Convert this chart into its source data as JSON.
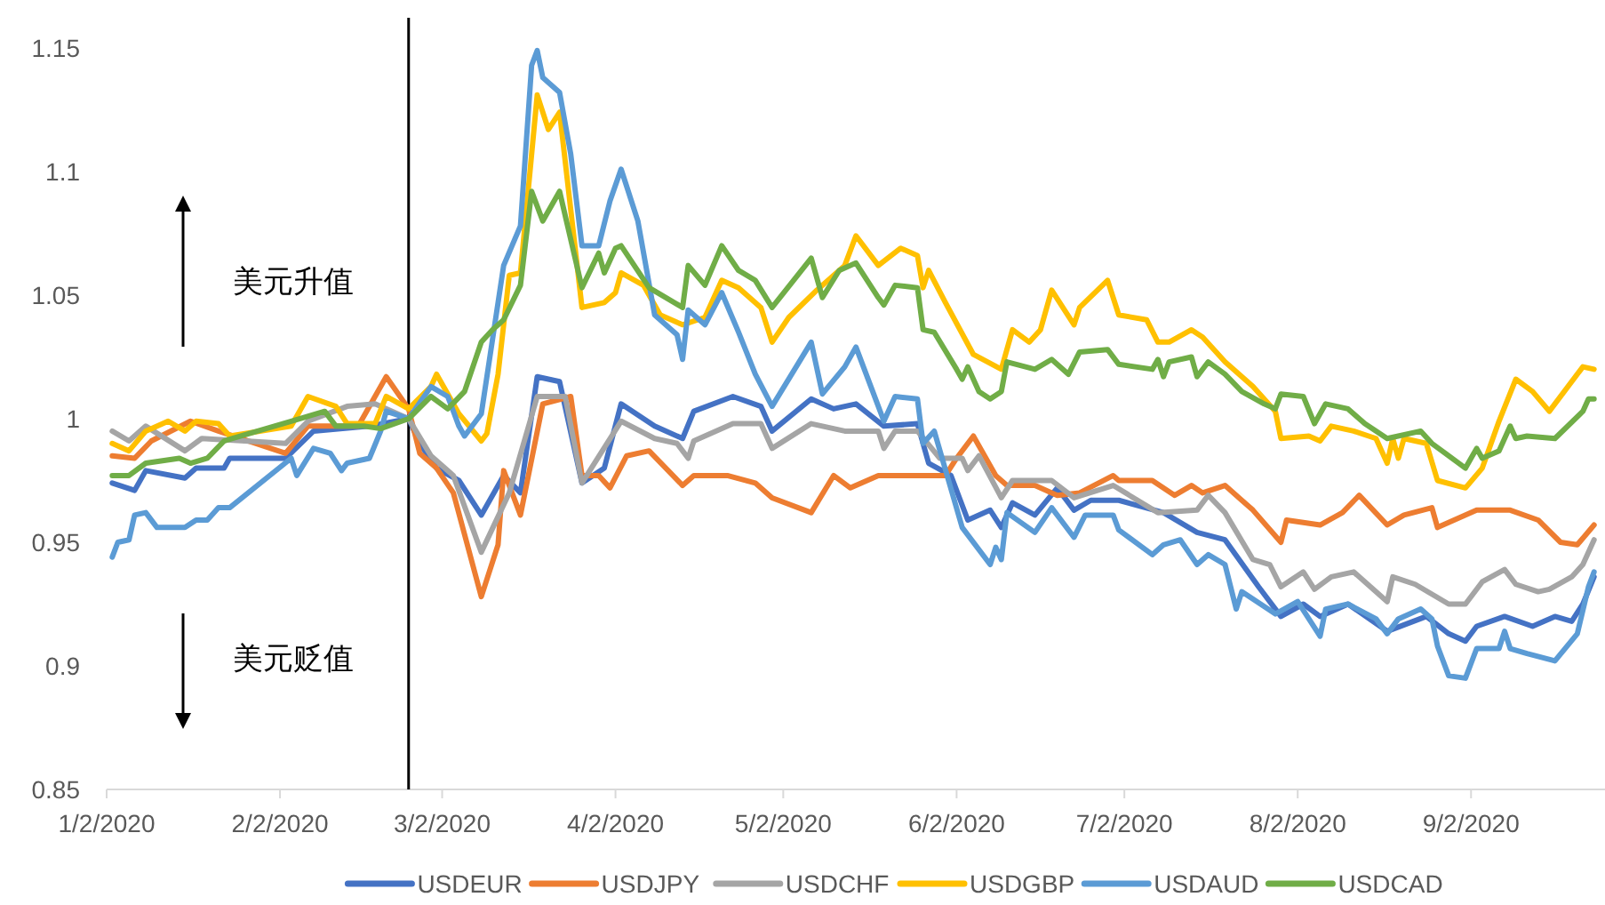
{
  "chart_data": {
    "type": "line",
    "xlim": [
      "2020-01-02",
      "2020-09-25"
    ],
    "ylim": [
      0.85,
      1.15
    ],
    "xticks": [
      {
        "value": "2020-01-02",
        "label": "1/2/2020"
      },
      {
        "value": "2020-02-02",
        "label": "2/2/2020"
      },
      {
        "value": "2020-03-02",
        "label": "3/2/2020"
      },
      {
        "value": "2020-04-02",
        "label": "4/2/2020"
      },
      {
        "value": "2020-05-02",
        "label": "5/2/2020"
      },
      {
        "value": "2020-06-02",
        "label": "6/2/2020"
      },
      {
        "value": "2020-07-02",
        "label": "7/2/2020"
      },
      {
        "value": "2020-08-02",
        "label": "8/2/2020"
      },
      {
        "value": "2020-09-02",
        "label": "9/2/2020"
      }
    ],
    "yticks": [
      0.85,
      0.9,
      0.95,
      1,
      1.05,
      1.1,
      1.15
    ],
    "legend": "bottom",
    "marker": "none",
    "line_style": "solid",
    "ref_lines": [
      {
        "axis": "x",
        "value": "2020-02-25",
        "color": "#000000"
      }
    ],
    "annotations": [
      "美元升值",
      "美元贬值"
    ],
    "series": [
      {
        "name": "USDEUR",
        "color": "#4472c4",
        "x": [
          "2020-01-03",
          "2020-01-07",
          "2020-01-09",
          "2020-01-16",
          "2020-01-18",
          "2020-01-23",
          "2020-01-24",
          "2020-02-03",
          "2020-02-08",
          "2020-02-18",
          "2020-02-25",
          "2020-02-27",
          "2020-03-01",
          "2020-03-05",
          "2020-03-09",
          "2020-03-13",
          "2020-03-16",
          "2020-03-19",
          "2020-03-23",
          "2020-03-27",
          "2020-03-31",
          "2020-04-03",
          "2020-04-09",
          "2020-04-14",
          "2020-04-16",
          "2020-04-23",
          "2020-04-28",
          "2020-04-30",
          "2020-05-07",
          "2020-05-11",
          "2020-05-15",
          "2020-05-20",
          "2020-05-26",
          "2020-05-28",
          "2020-06-01",
          "2020-06-04",
          "2020-06-08",
          "2020-06-10",
          "2020-06-12",
          "2020-06-16",
          "2020-06-20",
          "2020-06-23",
          "2020-06-26",
          "2020-07-01",
          "2020-07-09",
          "2020-07-15",
          "2020-07-20",
          "2020-07-26",
          "2020-07-30",
          "2020-08-03",
          "2020-08-06",
          "2020-08-11",
          "2020-08-18",
          "2020-08-25",
          "2020-08-29",
          "2020-09-01",
          "2020-09-03",
          "2020-09-08",
          "2020-09-13",
          "2020-09-17",
          "2020-09-20",
          "2020-09-22",
          "2020-09-24"
        ],
        "values": [
          0.974,
          0.971,
          0.979,
          0.976,
          0.98,
          0.98,
          0.984,
          0.984,
          0.995,
          0.997,
          1.0,
          0.99,
          0.98,
          0.975,
          0.961,
          0.977,
          0.97,
          1.017,
          1.015,
          0.974,
          0.98,
          1.006,
          0.997,
          0.992,
          1.003,
          1.009,
          1.005,
          0.995,
          1.008,
          1.004,
          1.006,
          0.997,
          0.998,
          0.982,
          0.977,
          0.959,
          0.963,
          0.956,
          0.966,
          0.961,
          0.972,
          0.963,
          0.967,
          0.967,
          0.962,
          0.954,
          0.951,
          0.932,
          0.92,
          0.925,
          0.92,
          0.925,
          0.914,
          0.92,
          0.913,
          0.91,
          0.916,
          0.92,
          0.916,
          0.92,
          0.918,
          0.925,
          0.936
        ]
      },
      {
        "name": "USDJPY",
        "color": "#ed7d31",
        "x": [
          "2020-01-03",
          "2020-01-07",
          "2020-01-10",
          "2020-01-17",
          "2020-01-22",
          "2020-02-03",
          "2020-02-07",
          "2020-02-16",
          "2020-02-21",
          "2020-02-25",
          "2020-02-27",
          "2020-03-01",
          "2020-03-04",
          "2020-03-09",
          "2020-03-12",
          "2020-03-13",
          "2020-03-16",
          "2020-03-20",
          "2020-03-25",
          "2020-03-27",
          "2020-03-30",
          "2020-04-01",
          "2020-04-04",
          "2020-04-08",
          "2020-04-14",
          "2020-04-16",
          "2020-04-22",
          "2020-04-27",
          "2020-04-30",
          "2020-05-07",
          "2020-05-11",
          "2020-05-14",
          "2020-05-19",
          "2020-05-27",
          "2020-05-31",
          "2020-06-02",
          "2020-06-05",
          "2020-06-09",
          "2020-06-11",
          "2020-06-16",
          "2020-06-20",
          "2020-06-24",
          "2020-06-30",
          "2020-07-01",
          "2020-07-07",
          "2020-07-11",
          "2020-07-14",
          "2020-07-16",
          "2020-07-20",
          "2020-07-23",
          "2020-07-25",
          "2020-07-30",
          "2020-07-31",
          "2020-08-06",
          "2020-08-10",
          "2020-08-13",
          "2020-08-18",
          "2020-08-21",
          "2020-08-26",
          "2020-08-27",
          "2020-09-03",
          "2020-09-09",
          "2020-09-14",
          "2020-09-18",
          "2020-09-21",
          "2020-09-24"
        ],
        "values": [
          0.985,
          0.984,
          0.991,
          0.999,
          0.995,
          0.986,
          0.997,
          0.997,
          1.017,
          1.004,
          0.986,
          0.98,
          0.97,
          0.928,
          0.949,
          0.979,
          0.961,
          1.006,
          1.009,
          0.977,
          0.977,
          0.972,
          0.985,
          0.987,
          0.973,
          0.977,
          0.977,
          0.974,
          0.968,
          0.962,
          0.977,
          0.972,
          0.977,
          0.977,
          0.977,
          0.984,
          0.993,
          0.977,
          0.973,
          0.973,
          0.969,
          0.97,
          0.977,
          0.975,
          0.975,
          0.969,
          0.973,
          0.97,
          0.973,
          0.967,
          0.963,
          0.95,
          0.959,
          0.957,
          0.962,
          0.969,
          0.957,
          0.961,
          0.964,
          0.956,
          0.963,
          0.963,
          0.959,
          0.95,
          0.949,
          0.957
        ]
      },
      {
        "name": "USDCHF",
        "color": "#a5a5a5",
        "x": [
          "2020-01-03",
          "2020-01-06",
          "2020-01-09",
          "2020-01-16",
          "2020-01-19",
          "2020-02-03",
          "2020-02-07",
          "2020-02-14",
          "2020-02-19",
          "2020-02-25",
          "2020-02-29",
          "2020-03-04",
          "2020-03-09",
          "2020-03-14",
          "2020-03-19",
          "2020-03-24",
          "2020-03-27",
          "2020-04-03",
          "2020-04-09",
          "2020-04-13",
          "2020-04-15",
          "2020-04-16",
          "2020-04-23",
          "2020-04-28",
          "2020-04-30",
          "2020-05-07",
          "2020-05-13",
          "2020-05-19",
          "2020-05-20",
          "2020-05-22",
          "2020-05-26",
          "2020-05-30",
          "2020-06-03",
          "2020-06-04",
          "2020-06-06",
          "2020-06-10",
          "2020-06-12",
          "2020-06-19",
          "2020-06-23",
          "2020-06-30",
          "2020-07-08",
          "2020-07-15",
          "2020-07-17",
          "2020-07-20",
          "2020-07-25",
          "2020-07-28",
          "2020-07-30",
          "2020-08-03",
          "2020-08-05",
          "2020-08-08",
          "2020-08-12",
          "2020-08-15",
          "2020-08-18",
          "2020-08-19",
          "2020-08-23",
          "2020-08-29",
          "2020-09-01",
          "2020-09-04",
          "2020-09-08",
          "2020-09-10",
          "2020-09-14",
          "2020-09-16",
          "2020-09-20",
          "2020-09-22",
          "2020-09-24"
        ],
        "values": [
          0.995,
          0.991,
          0.997,
          0.987,
          0.992,
          0.99,
          0.999,
          1.005,
          1.006,
          1.0,
          0.985,
          0.977,
          0.946,
          0.97,
          1.009,
          1.009,
          0.974,
          0.999,
          0.992,
          0.99,
          0.984,
          0.991,
          0.998,
          0.998,
          0.988,
          0.998,
          0.995,
          0.995,
          0.988,
          0.995,
          0.995,
          0.984,
          0.984,
          0.979,
          0.985,
          0.968,
          0.975,
          0.975,
          0.968,
          0.973,
          0.962,
          0.963,
          0.969,
          0.962,
          0.943,
          0.941,
          0.932,
          0.938,
          0.931,
          0.936,
          0.938,
          0.932,
          0.926,
          0.936,
          0.933,
          0.925,
          0.925,
          0.934,
          0.939,
          0.933,
          0.93,
          0.931,
          0.936,
          0.941,
          0.951
        ]
      },
      {
        "name": "USDGBP",
        "color": "#ffc000",
        "x": [
          "2020-01-03",
          "2020-01-06",
          "2020-01-09",
          "2020-01-13",
          "2020-01-16",
          "2020-01-18",
          "2020-01-22",
          "2020-01-24",
          "2020-02-04",
          "2020-02-07",
          "2020-02-12",
          "2020-02-14",
          "2020-02-19",
          "2020-02-21",
          "2020-02-25",
          "2020-02-29",
          "2020-03-01",
          "2020-03-05",
          "2020-03-09",
          "2020-03-10",
          "2020-03-12",
          "2020-03-14",
          "2020-03-16",
          "2020-03-19",
          "2020-03-21",
          "2020-03-23",
          "2020-03-27",
          "2020-03-31",
          "2020-04-02",
          "2020-04-03",
          "2020-04-07",
          "2020-04-10",
          "2020-04-14",
          "2020-04-18",
          "2020-04-21",
          "2020-04-24",
          "2020-04-28",
          "2020-04-30",
          "2020-05-03",
          "2020-05-08",
          "2020-05-13",
          "2020-05-15",
          "2020-05-19",
          "2020-05-23",
          "2020-05-26",
          "2020-05-27",
          "2020-05-28",
          "2020-05-31",
          "2020-06-05",
          "2020-06-10",
          "2020-06-12",
          "2020-06-15",
          "2020-06-17",
          "2020-06-19",
          "2020-06-23",
          "2020-06-24",
          "2020-06-29",
          "2020-07-01",
          "2020-07-06",
          "2020-07-08",
          "2020-07-10",
          "2020-07-14",
          "2020-07-16",
          "2020-07-20",
          "2020-07-25",
          "2020-07-29",
          "2020-07-30",
          "2020-08-04",
          "2020-08-06",
          "2020-08-08",
          "2020-08-12",
          "2020-08-16",
          "2020-08-18",
          "2020-08-19",
          "2020-08-20",
          "2020-08-21",
          "2020-08-25",
          "2020-08-27",
          "2020-09-01",
          "2020-09-04",
          "2020-09-07",
          "2020-09-10",
          "2020-09-13",
          "2020-09-16",
          "2020-09-22",
          "2020-09-24"
        ],
        "values": [
          0.99,
          0.987,
          0.995,
          0.999,
          0.995,
          0.999,
          0.998,
          0.993,
          0.997,
          1.009,
          1.005,
          0.998,
          0.998,
          1.009,
          1.004,
          1.013,
          1.018,
          1.002,
          0.991,
          0.994,
          1.018,
          1.058,
          1.059,
          1.131,
          1.117,
          1.124,
          1.045,
          1.047,
          1.051,
          1.059,
          1.054,
          1.042,
          1.038,
          1.041,
          1.056,
          1.053,
          1.045,
          1.031,
          1.041,
          1.052,
          1.062,
          1.074,
          1.062,
          1.069,
          1.066,
          1.053,
          1.06,
          1.047,
          1.026,
          1.02,
          1.036,
          1.031,
          1.036,
          1.052,
          1.038,
          1.045,
          1.056,
          1.042,
          1.04,
          1.031,
          1.031,
          1.036,
          1.033,
          1.023,
          1.013,
          1.003,
          0.992,
          0.993,
          0.991,
          0.997,
          0.995,
          0.992,
          0.982,
          0.992,
          0.984,
          0.992,
          0.99,
          0.975,
          0.972,
          0.98,
          0.999,
          1.016,
          1.011,
          1.003,
          1.021,
          1.02
        ]
      },
      {
        "name": "USDAUD",
        "color": "#5b9bd5",
        "x": [
          "2020-01-03",
          "2020-01-04",
          "2020-01-06",
          "2020-01-07",
          "2020-01-09",
          "2020-01-11",
          "2020-01-16",
          "2020-01-18",
          "2020-01-20",
          "2020-01-22",
          "2020-01-24",
          "2020-02-04",
          "2020-02-05",
          "2020-02-08",
          "2020-02-11",
          "2020-02-13",
          "2020-02-14",
          "2020-02-18",
          "2020-02-20",
          "2020-02-21",
          "2020-02-25",
          "2020-02-29",
          "2020-03-03",
          "2020-03-05",
          "2020-03-06",
          "2020-03-09",
          "2020-03-12",
          "2020-03-13",
          "2020-03-16",
          "2020-03-18",
          "2020-03-19",
          "2020-03-20",
          "2020-03-23",
          "2020-03-25",
          "2020-03-27",
          "2020-03-30",
          "2020-04-01",
          "2020-04-03",
          "2020-04-06",
          "2020-04-09",
          "2020-04-13",
          "2020-04-14",
          "2020-04-15",
          "2020-04-18",
          "2020-04-21",
          "2020-04-24",
          "2020-04-27",
          "2020-04-30",
          "2020-05-07",
          "2020-05-09",
          "2020-05-13",
          "2020-05-15",
          "2020-05-18",
          "2020-05-20",
          "2020-05-22",
          "2020-05-26",
          "2020-05-27",
          "2020-05-29",
          "2020-06-03",
          "2020-06-08",
          "2020-06-09",
          "2020-06-10",
          "2020-06-11",
          "2020-06-16",
          "2020-06-19",
          "2020-06-23",
          "2020-06-25",
          "2020-06-30",
          "2020-07-01",
          "2020-07-07",
          "2020-07-09",
          "2020-07-12",
          "2020-07-15",
          "2020-07-17",
          "2020-07-20",
          "2020-07-22",
          "2020-07-23",
          "2020-07-29",
          "2020-08-02",
          "2020-08-06",
          "2020-08-07",
          "2020-08-11",
          "2020-08-16",
          "2020-08-18",
          "2020-08-20",
          "2020-08-24",
          "2020-08-26",
          "2020-08-27",
          "2020-08-29",
          "2020-09-01",
          "2020-09-03",
          "2020-09-07",
          "2020-09-08",
          "2020-09-09",
          "2020-09-12",
          "2020-09-17",
          "2020-09-21",
          "2020-09-23",
          "2020-09-24"
        ],
        "values": [
          0.944,
          0.95,
          0.951,
          0.961,
          0.962,
          0.956,
          0.956,
          0.959,
          0.959,
          0.964,
          0.964,
          0.984,
          0.977,
          0.988,
          0.986,
          0.979,
          0.982,
          0.984,
          0.995,
          1.003,
          1.0,
          1.013,
          1.009,
          0.997,
          0.993,
          1.002,
          1.047,
          1.062,
          1.078,
          1.143,
          1.149,
          1.138,
          1.132,
          1.107,
          1.07,
          1.07,
          1.088,
          1.101,
          1.08,
          1.042,
          1.034,
          1.024,
          1.044,
          1.038,
          1.051,
          1.035,
          1.018,
          1.005,
          1.031,
          1.01,
          1.021,
          1.029,
          1.011,
          0.999,
          1.009,
          1.008,
          0.99,
          0.995,
          0.956,
          0.941,
          0.948,
          0.943,
          0.962,
          0.954,
          0.964,
          0.952,
          0.961,
          0.961,
          0.955,
          0.945,
          0.949,
          0.951,
          0.941,
          0.945,
          0.941,
          0.923,
          0.93,
          0.921,
          0.926,
          0.912,
          0.923,
          0.925,
          0.919,
          0.913,
          0.919,
          0.923,
          0.919,
          0.908,
          0.896,
          0.895,
          0.907,
          0.907,
          0.914,
          0.907,
          0.905,
          0.902,
          0.913,
          0.932,
          0.938
        ]
      },
      {
        "name": "USDCAD",
        "color": "#70ad47",
        "x": [
          "2020-01-03",
          "2020-01-06",
          "2020-01-09",
          "2020-01-15",
          "2020-01-17",
          "2020-01-20",
          "2020-01-23",
          "2020-02-04",
          "2020-02-10",
          "2020-02-12",
          "2020-02-17",
          "2020-02-20",
          "2020-02-25",
          "2020-02-29",
          "2020-03-03",
          "2020-03-06",
          "2020-03-09",
          "2020-03-11",
          "2020-03-13",
          "2020-03-16",
          "2020-03-18",
          "2020-03-20",
          "2020-03-23",
          "2020-03-27",
          "2020-03-30",
          "2020-03-31",
          "2020-04-02",
          "2020-04-03",
          "2020-04-08",
          "2020-04-14",
          "2020-04-15",
          "2020-04-18",
          "2020-04-21",
          "2020-04-24",
          "2020-04-27",
          "2020-04-30",
          "2020-05-07",
          "2020-05-09",
          "2020-05-12",
          "2020-05-15",
          "2020-05-19",
          "2020-05-20",
          "2020-05-22",
          "2020-05-26",
          "2020-05-27",
          "2020-05-29",
          "2020-06-02",
          "2020-06-03",
          "2020-06-04",
          "2020-06-06",
          "2020-06-08",
          "2020-06-10",
          "2020-06-11",
          "2020-06-16",
          "2020-06-19",
          "2020-06-22",
          "2020-06-24",
          "2020-06-29",
          "2020-07-01",
          "2020-07-07",
          "2020-07-08",
          "2020-07-09",
          "2020-07-10",
          "2020-07-14",
          "2020-07-15",
          "2020-07-17",
          "2020-07-20",
          "2020-07-23",
          "2020-07-27",
          "2020-07-29",
          "2020-07-30",
          "2020-08-03",
          "2020-08-05",
          "2020-08-07",
          "2020-08-11",
          "2020-08-14",
          "2020-08-18",
          "2020-08-24",
          "2020-08-26",
          "2020-09-01",
          "2020-09-03",
          "2020-09-04",
          "2020-09-07",
          "2020-09-09",
          "2020-09-10",
          "2020-09-12",
          "2020-09-17",
          "2020-09-22",
          "2020-09-23",
          "2020-09-24"
        ],
        "values": [
          0.977,
          0.977,
          0.982,
          0.984,
          0.982,
          0.984,
          0.991,
          0.999,
          1.003,
          0.997,
          0.997,
          0.996,
          1.0,
          1.009,
          1.004,
          1.011,
          1.031,
          1.036,
          1.04,
          1.054,
          1.092,
          1.08,
          1.092,
          1.053,
          1.067,
          1.059,
          1.069,
          1.07,
          1.053,
          1.045,
          1.062,
          1.054,
          1.07,
          1.06,
          1.056,
          1.045,
          1.065,
          1.049,
          1.06,
          1.063,
          1.049,
          1.046,
          1.054,
          1.053,
          1.036,
          1.035,
          1.02,
          1.016,
          1.021,
          1.011,
          1.008,
          1.011,
          1.023,
          1.02,
          1.024,
          1.018,
          1.027,
          1.028,
          1.022,
          1.02,
          1.024,
          1.017,
          1.023,
          1.025,
          1.017,
          1.023,
          1.018,
          1.011,
          1.006,
          1.004,
          1.01,
          1.009,
          0.998,
          1.006,
          1.004,
          0.998,
          0.992,
          0.995,
          0.99,
          0.98,
          0.988,
          0.984,
          0.987,
          0.997,
          0.992,
          0.993,
          0.992,
          1.003,
          1.008,
          1.008
        ]
      }
    ]
  }
}
